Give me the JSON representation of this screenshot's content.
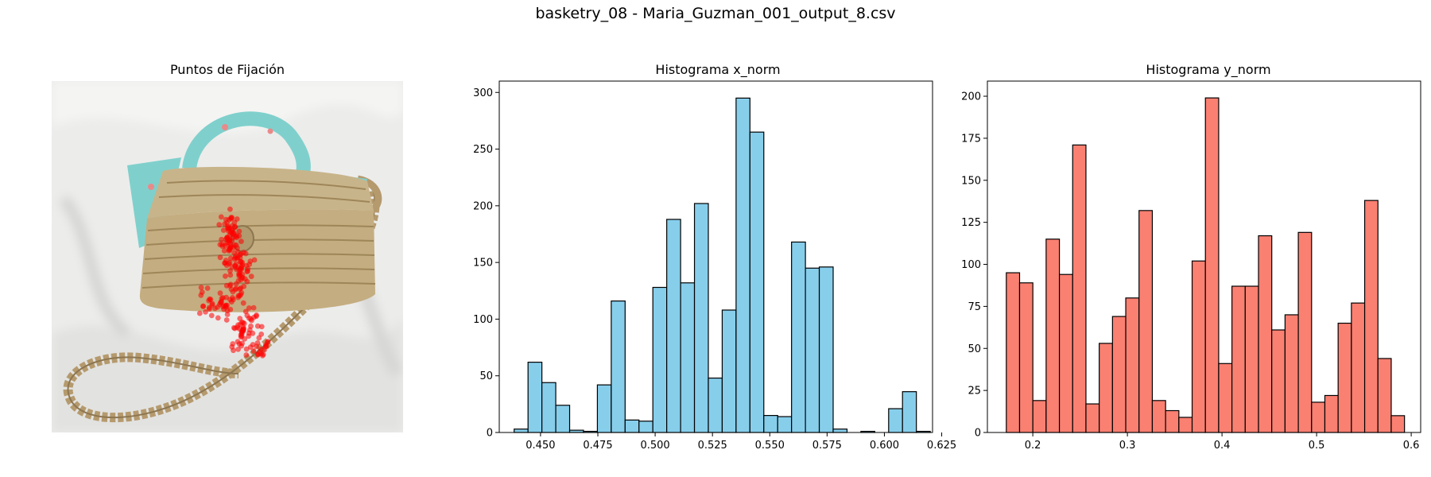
{
  "figure_title": "basketry_08 - Maria_Guzman_001_output_8.csv",
  "colors": {
    "x_hist": "#87ceeb",
    "y_hist": "#fa8072",
    "edge": "#000000",
    "fixation": "#ff0000"
  },
  "chart_data": [
    {
      "type": "image",
      "title": "Puntos de Fijación",
      "axes": "off",
      "content": "photo of a woven straw handbag with a turquoise floral scarf tied on the handle, on white fabric, overlaid with red fixation points"
    },
    {
      "type": "bar",
      "title": "Histograma x_norm",
      "xlim": [
        0.432,
        0.621
      ],
      "ylim": [
        0,
        310
      ],
      "xticks": [
        0.45,
        0.475,
        0.5,
        0.525,
        0.55,
        0.575,
        0.6,
        0.625
      ],
      "xtick_labels": [
        "0.450",
        "0.475",
        "0.500",
        "0.525",
        "0.550",
        "0.575",
        "0.600",
        "0.625"
      ],
      "yticks": [
        0,
        50,
        100,
        150,
        200,
        250,
        300
      ],
      "bin_start": 0.4385,
      "bin_width": 0.00605,
      "values": [
        3,
        62,
        44,
        24,
        2,
        1,
        42,
        116,
        11,
        10,
        128,
        188,
        132,
        202,
        48,
        108,
        295,
        265,
        15,
        14,
        168,
        145,
        146,
        3,
        0,
        1,
        0,
        21,
        36,
        1
      ]
    },
    {
      "type": "bar",
      "title": "Histograma y_norm",
      "xlim": [
        0.152,
        0.61
      ],
      "ylim": [
        0,
        209
      ],
      "xticks": [
        0.2,
        0.3,
        0.4,
        0.5,
        0.6
      ],
      "xtick_labels": [
        "0.2",
        "0.3",
        "0.4",
        "0.5",
        "0.6"
      ],
      "yticks": [
        0,
        25,
        50,
        75,
        100,
        125,
        150,
        175,
        200
      ],
      "bin_start": 0.172,
      "bin_width": 0.01403,
      "values": [
        95,
        89,
        19,
        115,
        94,
        171,
        17,
        53,
        69,
        80,
        132,
        19,
        13,
        9,
        102,
        199,
        41,
        87,
        87,
        117,
        61,
        70,
        119,
        18,
        22,
        65,
        77,
        138,
        44,
        10
      ]
    }
  ]
}
